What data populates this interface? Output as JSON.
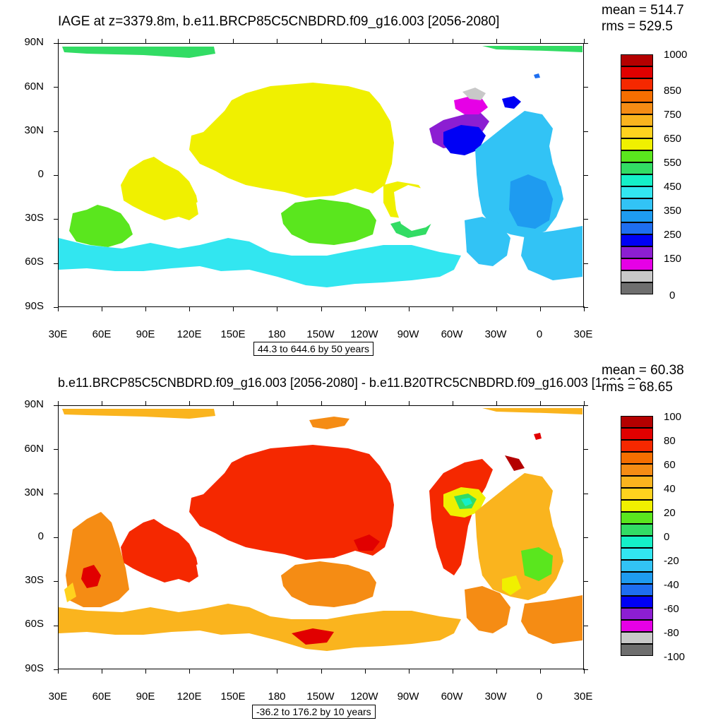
{
  "panels": [
    {
      "title": "IAGE at z=3379.8m, b.e11.BRCP85C5CNBDRD.f09_g16.003 [2056-2080]",
      "mean": "mean = 514.7",
      "rms": "rms = 529.5",
      "info": "44.3 to 644.6 by 50 years",
      "colorbar": {
        "colors": [
          "#6e6e6e",
          "#c8c8c8",
          "#e600e6",
          "#8c1ed2",
          "#0000f5",
          "#1e6ef0",
          "#1e9bf0",
          "#32c3f5",
          "#32e6f0",
          "#14f0c8",
          "#32dc64",
          "#5ae61e",
          "#f0f000",
          "#ffd21e",
          "#fab41e",
          "#f58c14",
          "#f56e00",
          "#f52800",
          "#e10000",
          "#b40000"
        ],
        "labels": [
          "0",
          "150",
          "250",
          "350",
          "450",
          "550",
          "650",
          "750",
          "850",
          "1000"
        ]
      },
      "lat_labels": [
        "90N",
        "60N",
        "30N",
        "0",
        "30S",
        "60S",
        "90S"
      ],
      "lon_labels": [
        "30E",
        "60E",
        "90E",
        "120E",
        "150E",
        "180",
        "150W",
        "120W",
        "90W",
        "60W",
        "30W",
        "0",
        "30E"
      ]
    },
    {
      "title": "b.e11.BRCP85C5CNBDRD.f09_g16.003 [2056-2080] - b.e11.B20TRC5CNBDRD.f09_g16.003 [1981-20",
      "mean": "mean = 60.38",
      "rms": "rms = 68.65",
      "info": "-36.2 to 176.2 by 10 years",
      "colorbar": {
        "colors": [
          "#6e6e6e",
          "#c8c8c8",
          "#e600e6",
          "#8c1ed2",
          "#0000f5",
          "#1e6ef0",
          "#1e9bf0",
          "#32c3f5",
          "#32e6f0",
          "#14f0c8",
          "#32dc64",
          "#5ae61e",
          "#f0f000",
          "#ffd21e",
          "#fab41e",
          "#f58c14",
          "#f56e00",
          "#f52800",
          "#e10000",
          "#b40000"
        ],
        "labels": [
          "-100",
          "-80",
          "-60",
          "-40",
          "-20",
          "0",
          "20",
          "40",
          "60",
          "80",
          "100"
        ]
      },
      "lat_labels": [
        "90N",
        "60N",
        "30N",
        "0",
        "30S",
        "60S",
        "90S"
      ],
      "lon_labels": [
        "30E",
        "60E",
        "90E",
        "120E",
        "150E",
        "180",
        "150W",
        "120W",
        "90W",
        "60W",
        "30W",
        "0",
        "30E"
      ]
    }
  ]
}
